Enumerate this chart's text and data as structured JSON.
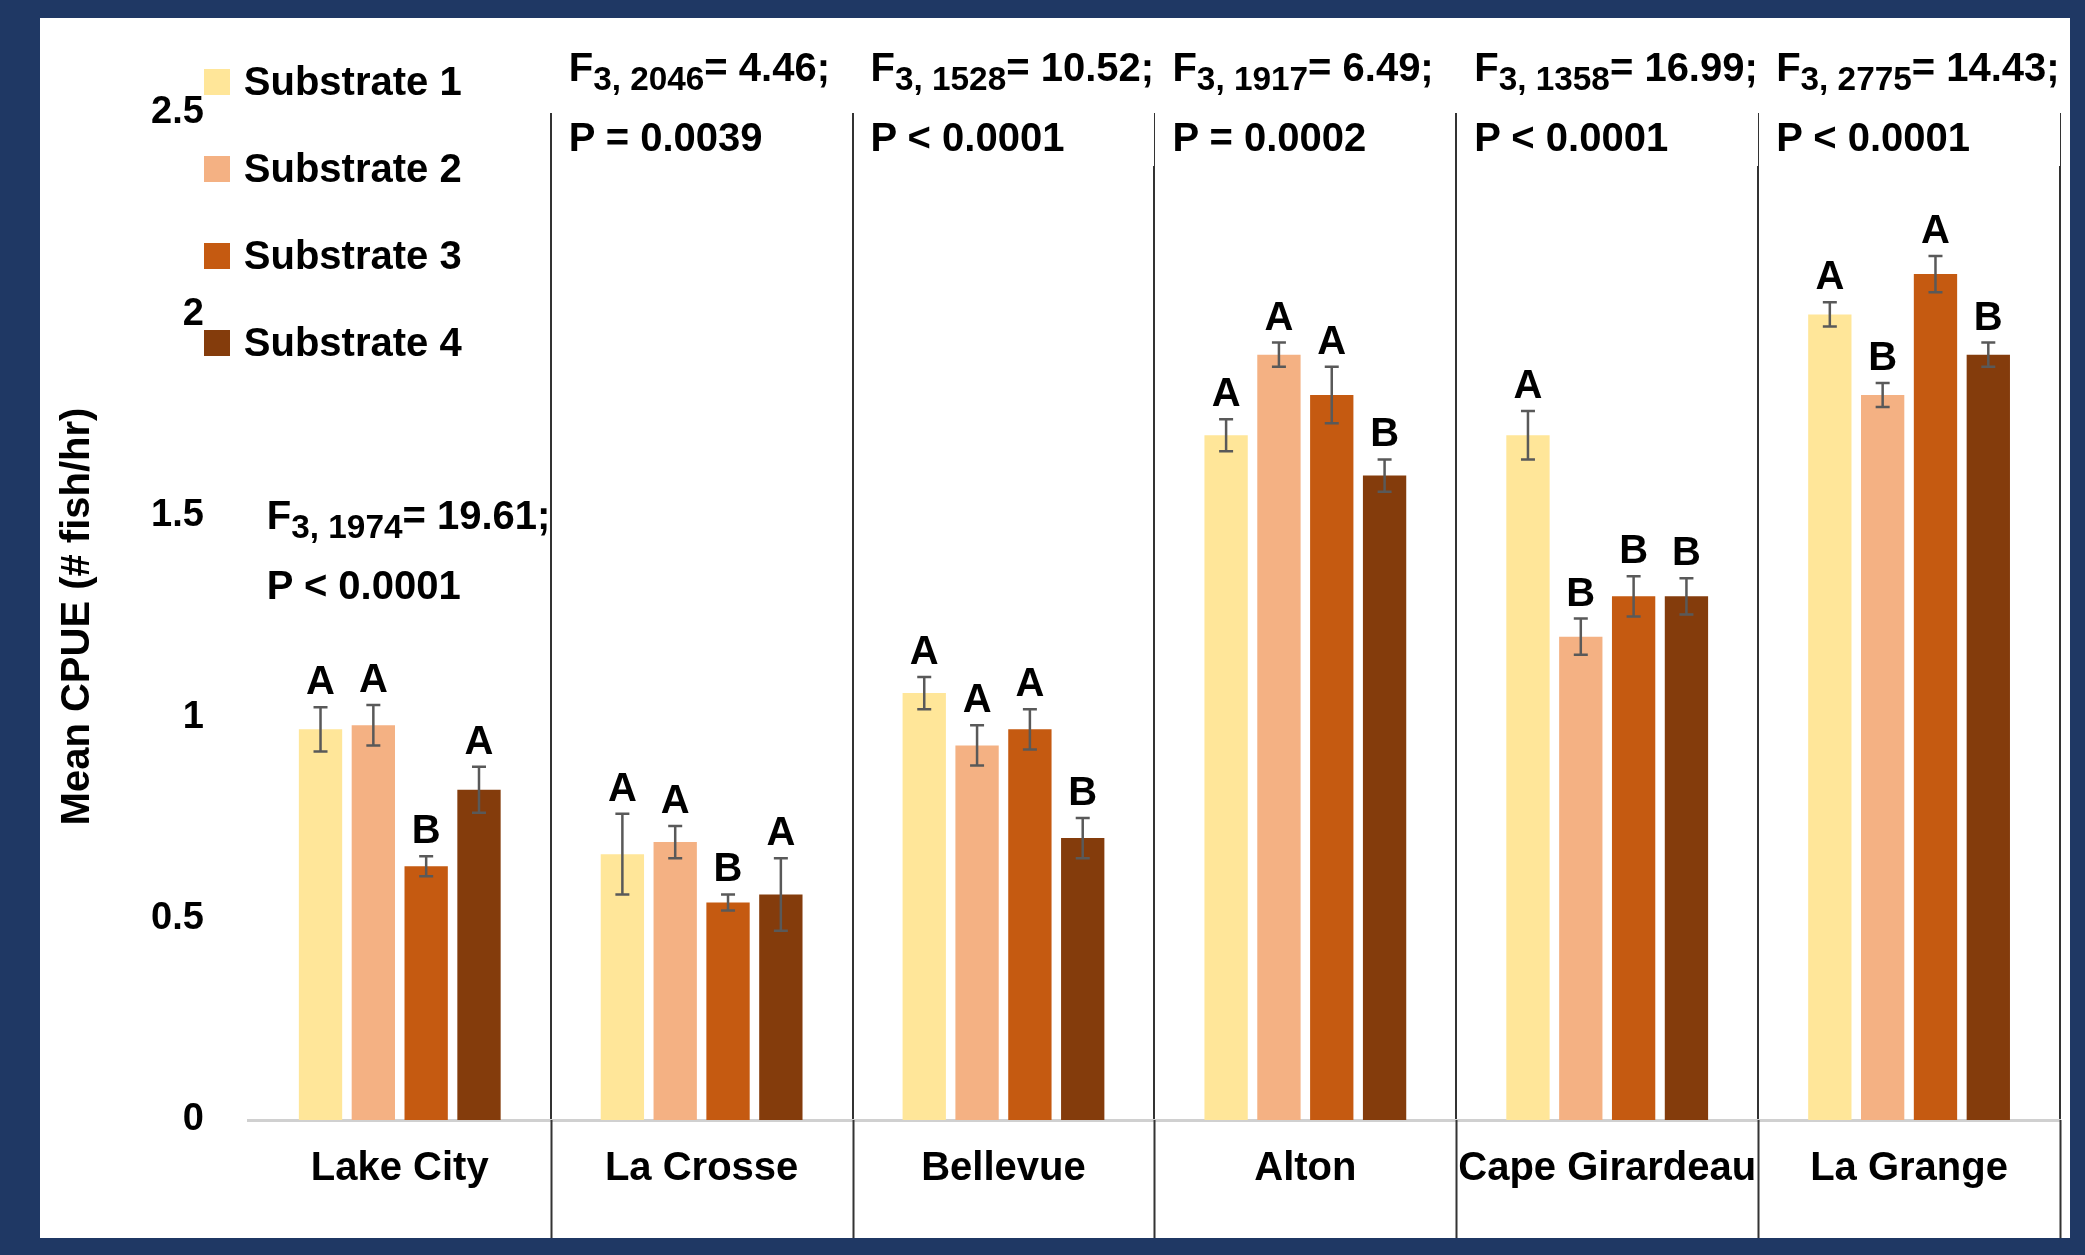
{
  "chart_data": {
    "type": "bar",
    "ylabel": "Mean CPUE (# fish/hr)",
    "categories": [
      "Lake City",
      "La Crosse",
      "Bellevue",
      "Alton",
      "Cape Girardeau",
      "La Grange"
    ],
    "series": [
      {
        "name": "Substrate 1",
        "color": "#ffe699",
        "values": [
          0.97,
          0.66,
          1.06,
          1.7,
          1.7,
          2.0
        ],
        "errors": [
          0.055,
          0.1,
          0.04,
          0.04,
          0.06,
          0.03
        ],
        "value_labels": [
          "A",
          "A",
          "A",
          "A",
          "A",
          "A"
        ]
      },
      {
        "name": "Substrate 2",
        "color": "#f4b183",
        "values": [
          0.98,
          0.69,
          0.93,
          1.9,
          1.2,
          1.8
        ],
        "errors": [
          0.05,
          0.04,
          0.05,
          0.03,
          0.045,
          0.03
        ],
        "value_labels": [
          "A",
          "A",
          "A",
          "A",
          "B",
          "B"
        ]
      },
      {
        "name": "Substrate 3",
        "color": "#c55a11",
        "values": [
          0.63,
          0.54,
          0.97,
          1.8,
          1.3,
          2.1
        ],
        "errors": [
          0.025,
          0.02,
          0.05,
          0.07,
          0.05,
          0.045
        ],
        "value_labels": [
          "B",
          "B",
          "A",
          "A",
          "B",
          "A"
        ]
      },
      {
        "name": "Substrate 4",
        "color": "#843c0c",
        "values": [
          0.82,
          0.56,
          0.7,
          1.6,
          1.3,
          1.9
        ],
        "errors": [
          0.057,
          0.09,
          0.05,
          0.04,
          0.045,
          0.03
        ],
        "value_labels": [
          "A",
          "A",
          "B",
          "B",
          "B",
          "B"
        ]
      }
    ],
    "ylim": [
      0,
      2.5
    ],
    "yticks": [
      0,
      0.5,
      1,
      1.5,
      2,
      2.5
    ],
    "grid": "x",
    "legend": "top left",
    "annotations": [
      "F$_{3, 1974}$= 19.61;\nP < 0.0001",
      "F$_{3, 2046}$= 4.46;\nP = 0.0039",
      "F$_{3, 1528}$= 10.52;\nP < 0.0001",
      "F$_{3, 1917}$= 6.49;\nP = 0.0002",
      "F$_{3, 1358}$= 16.99;\nP < 0.0001",
      "F$_{3, 2775}$= 14.43;\nP < 0.0001"
    ]
  }
}
